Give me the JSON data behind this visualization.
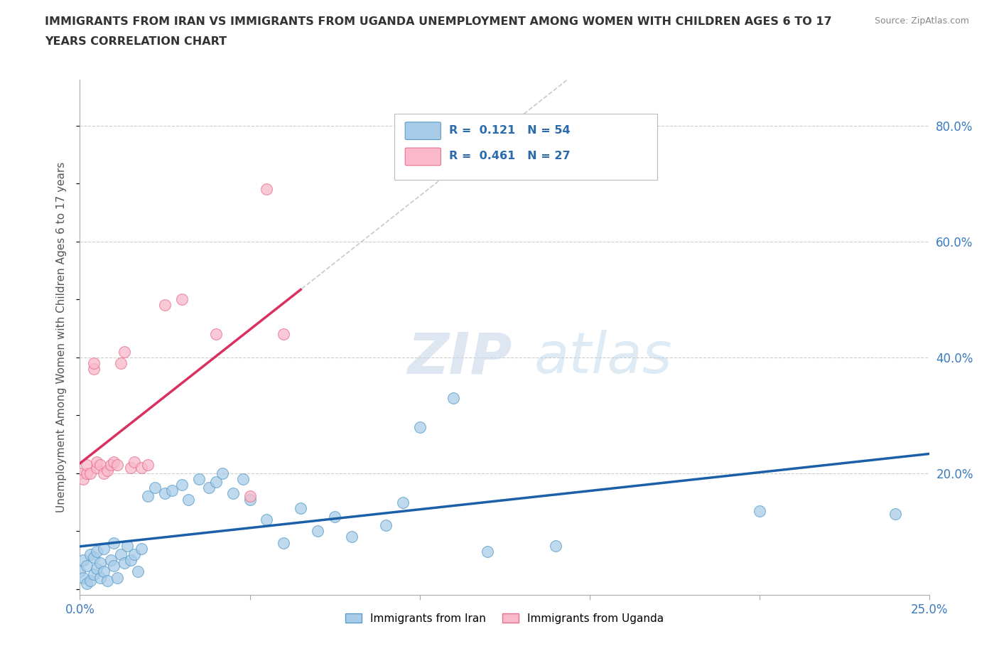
{
  "title_line1": "IMMIGRANTS FROM IRAN VS IMMIGRANTS FROM UGANDA UNEMPLOYMENT AMONG WOMEN WITH CHILDREN AGES 6 TO 17",
  "title_line2": "YEARS CORRELATION CHART",
  "ylabel": "Unemployment Among Women with Children Ages 6 to 17 years",
  "source": "Source: ZipAtlas.com",
  "xlim": [
    0.0,
    0.25
  ],
  "ylim": [
    -0.01,
    0.88
  ],
  "xticks": [
    0.0,
    0.05,
    0.1,
    0.15,
    0.2,
    0.25
  ],
  "xticklabels": [
    "0.0%",
    "",
    "",
    "",
    "",
    "25.0%"
  ],
  "yticks_right": [
    0.2,
    0.4,
    0.6,
    0.8
  ],
  "ytick_labels_right": [
    "20.0%",
    "40.0%",
    "60.0%",
    "80.0%"
  ],
  "iran_color": "#a8cce8",
  "iran_color_border": "#5b9ec9",
  "uganda_color": "#f9b8cb",
  "uganda_color_border": "#e8708a",
  "trend_iran_color": "#1a5fa8",
  "trend_uganda_color": "#d93060",
  "R_iran": 0.121,
  "N_iran": 54,
  "R_uganda": 0.461,
  "N_uganda": 27,
  "iran_x": [
    0.0,
    0.001,
    0.001,
    0.002,
    0.002,
    0.003,
    0.003,
    0.004,
    0.004,
    0.005,
    0.005,
    0.006,
    0.006,
    0.007,
    0.007,
    0.008,
    0.009,
    0.01,
    0.01,
    0.011,
    0.012,
    0.013,
    0.014,
    0.015,
    0.016,
    0.017,
    0.018,
    0.02,
    0.022,
    0.025,
    0.027,
    0.03,
    0.032,
    0.035,
    0.038,
    0.04,
    0.042,
    0.045,
    0.048,
    0.05,
    0.055,
    0.06,
    0.065,
    0.07,
    0.075,
    0.08,
    0.09,
    0.095,
    0.1,
    0.11,
    0.12,
    0.14,
    0.2,
    0.24
  ],
  "iran_y": [
    0.03,
    0.02,
    0.05,
    0.01,
    0.04,
    0.015,
    0.06,
    0.025,
    0.055,
    0.035,
    0.065,
    0.02,
    0.045,
    0.03,
    0.07,
    0.015,
    0.05,
    0.04,
    0.08,
    0.02,
    0.06,
    0.045,
    0.075,
    0.05,
    0.06,
    0.03,
    0.07,
    0.16,
    0.175,
    0.165,
    0.17,
    0.18,
    0.155,
    0.19,
    0.175,
    0.185,
    0.2,
    0.165,
    0.19,
    0.155,
    0.12,
    0.08,
    0.14,
    0.1,
    0.125,
    0.09,
    0.11,
    0.15,
    0.28,
    0.33,
    0.065,
    0.075,
    0.135,
    0.13
  ],
  "uganda_x": [
    0.0,
    0.001,
    0.002,
    0.002,
    0.003,
    0.004,
    0.004,
    0.005,
    0.005,
    0.006,
    0.007,
    0.008,
    0.009,
    0.01,
    0.011,
    0.012,
    0.013,
    0.015,
    0.016,
    0.018,
    0.02,
    0.025,
    0.03,
    0.04,
    0.05,
    0.055,
    0.06
  ],
  "uganda_y": [
    0.2,
    0.19,
    0.2,
    0.215,
    0.2,
    0.38,
    0.39,
    0.21,
    0.22,
    0.215,
    0.2,
    0.205,
    0.215,
    0.22,
    0.215,
    0.39,
    0.41,
    0.21,
    0.22,
    0.21,
    0.215,
    0.49,
    0.5,
    0.44,
    0.16,
    0.69,
    0.44
  ],
  "watermark_zip": "ZIP",
  "watermark_atlas": "atlas",
  "background_color": "#ffffff",
  "grid_color": "#cccccc",
  "legend_iran_label": "Immigrants from Iran",
  "legend_uganda_label": "Immigrants from Uganda"
}
